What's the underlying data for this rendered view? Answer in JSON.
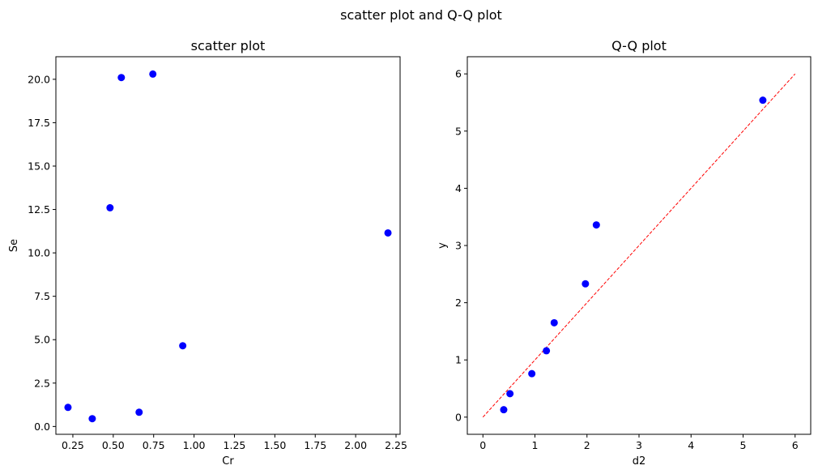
{
  "figure": {
    "suptitle": "scatter plot and Q-Q plot"
  },
  "chart_data": [
    {
      "type": "scatter",
      "title": "scatter plot",
      "xlabel": "Cr",
      "ylabel": "Se",
      "xlim": [
        0.145,
        2.275
      ],
      "ylim": [
        -0.45,
        21.3
      ],
      "xticks": [
        "0.25",
        "0.50",
        "0.75",
        "1.00",
        "1.25",
        "1.50",
        "1.75",
        "2.00",
        "2.25"
      ],
      "yticks": [
        "0.0",
        "2.5",
        "5.0",
        "7.5",
        "10.0",
        "12.5",
        "15.0",
        "17.5",
        "20.0"
      ],
      "grid": false,
      "series": [
        {
          "color": "#0000ff",
          "points": [
            {
              "x": 0.22,
              "y": 1.1
            },
            {
              "x": 0.37,
              "y": 0.45
            },
            {
              "x": 0.48,
              "y": 12.6
            },
            {
              "x": 0.55,
              "y": 20.1
            },
            {
              "x": 0.66,
              "y": 0.82
            },
            {
              "x": 0.745,
              "y": 20.3
            },
            {
              "x": 0.93,
              "y": 4.65
            },
            {
              "x": 2.2,
              "y": 11.15
            }
          ]
        }
      ]
    },
    {
      "type": "scatter",
      "title": "Q-Q plot",
      "xlabel": "d2",
      "ylabel": "y",
      "xlim": [
        -0.3,
        6.3
      ],
      "ylim": [
        -0.3,
        6.3
      ],
      "xticks": [
        "0",
        "1",
        "2",
        "3",
        "4",
        "5",
        "6"
      ],
      "yticks": [
        "0",
        "1",
        "2",
        "3",
        "4",
        "5",
        "6"
      ],
      "grid": false,
      "series": [
        {
          "color": "#0000ff",
          "points": [
            {
              "x": 0.4,
              "y": 0.13
            },
            {
              "x": 0.52,
              "y": 0.41
            },
            {
              "x": 0.94,
              "y": 0.76
            },
            {
              "x": 1.22,
              "y": 1.16
            },
            {
              "x": 1.37,
              "y": 1.65
            },
            {
              "x": 1.97,
              "y": 2.33
            },
            {
              "x": 2.18,
              "y": 3.36
            },
            {
              "x": 5.38,
              "y": 5.54
            }
          ]
        }
      ],
      "reference_line": {
        "x": [
          0,
          6
        ],
        "y": [
          0,
          6
        ],
        "color": "#ff0000",
        "style": "dashed"
      }
    }
  ]
}
